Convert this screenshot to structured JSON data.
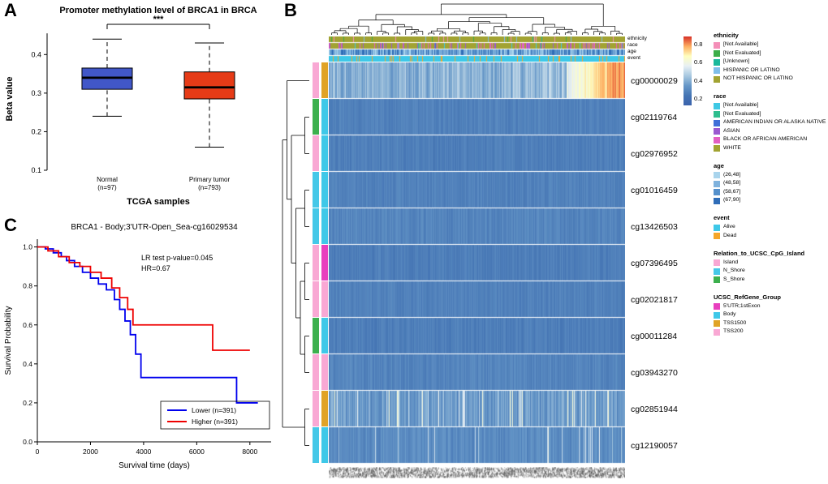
{
  "panels": {
    "a": "A",
    "b": "B",
    "c": "C"
  },
  "chart_data": [
    {
      "id": "panel_a",
      "type": "boxplot",
      "title": "Promoter methylation level of BRCA1 in BRCA",
      "xlabel": "TCGA samples",
      "ylabel": "Beta value",
      "ylim": [
        0.1,
        0.47
      ],
      "yticks": [
        0.1,
        0.2,
        0.3,
        0.4
      ],
      "significance": "***",
      "groups": [
        {
          "label": "Normal",
          "sublabel": "(n=97)",
          "color": "#4157c8",
          "whisker_low": 0.24,
          "q1": 0.31,
          "median": 0.34,
          "q3": 0.365,
          "whisker_high": 0.44
        },
        {
          "label": "Primary tumor",
          "sublabel": "(n=793)",
          "color": "#e63b17",
          "whisker_low": 0.16,
          "q1": 0.285,
          "median": 0.315,
          "q3": 0.355,
          "whisker_high": 0.43
        }
      ]
    },
    {
      "id": "panel_b",
      "type": "heatmap",
      "value_scale": {
        "min": 0.12,
        "max": 0.88,
        "legend_ticks": [
          0.8,
          0.6,
          0.4,
          0.2
        ],
        "colors": [
          "#3A62AC",
          "#4575B4",
          "#6697C8",
          "#A8C8E0",
          "#E8F0F5",
          "#FFFFBF",
          "#FDAE61",
          "#D73027"
        ]
      },
      "rows": [
        {
          "id": "cg00000029",
          "relation": "Island",
          "gene_group": "TSS1500",
          "base": 0.4,
          "noise": 0.08,
          "hot_right": true,
          "streak": 0.05
        },
        {
          "id": "cg02119764",
          "relation": "S_Shore",
          "gene_group": "Body",
          "base": 0.27,
          "noise": 0.03
        },
        {
          "id": "cg02976952",
          "relation": "Island",
          "gene_group": "Body",
          "base": 0.26,
          "noise": 0.03
        },
        {
          "id": "cg01016459",
          "relation": "N_Shore",
          "gene_group": "Body",
          "base": 0.27,
          "noise": 0.03
        },
        {
          "id": "cg13426503",
          "relation": "N_Shore",
          "gene_group": "Body",
          "base": 0.28,
          "noise": 0.035
        },
        {
          "id": "cg07396495",
          "relation": "Island",
          "gene_group": "5'UTR;1stExon",
          "base": 0.26,
          "noise": 0.03
        },
        {
          "id": "cg02021817",
          "relation": "Island",
          "gene_group": "TSS200",
          "base": 0.27,
          "noise": 0.03
        },
        {
          "id": "cg00011284",
          "relation": "S_Shore",
          "gene_group": "Body",
          "base": 0.26,
          "noise": 0.03
        },
        {
          "id": "cg03943270",
          "relation": "Island",
          "gene_group": "TSS200",
          "base": 0.28,
          "noise": 0.035
        },
        {
          "id": "cg02851944",
          "relation": "Island",
          "gene_group": "TSS1500",
          "base": 0.34,
          "noise": 0.07,
          "streak": 0.1
        },
        {
          "id": "cg12190057",
          "relation": "N_Shore",
          "gene_group": "Body",
          "base": 0.3,
          "noise": 0.045,
          "streak": 0.04
        }
      ],
      "column_annotations": [
        {
          "name": "ethnicity",
          "items": [
            {
              "label": "[Not Available]",
              "color": "#F48FB8",
              "weight": 0.02
            },
            {
              "label": "[Not Evaluated]",
              "color": "#3DAE49",
              "weight": 0.02
            },
            {
              "label": "[Unknown]",
              "color": "#19B89B",
              "weight": 0.01
            },
            {
              "label": "HISPANIC OR LATINO",
              "color": "#7FBEE9",
              "weight": 0.04
            },
            {
              "label": "NOT HISPANIC OR LATINO",
              "color": "#A2A332",
              "weight": 0.91
            }
          ]
        },
        {
          "name": "race",
          "items": [
            {
              "label": "[Not Available]",
              "color": "#3FC8E4",
              "weight": 0.03
            },
            {
              "label": "[Not Evaluated]",
              "color": "#2EBE8E",
              "weight": 0.01
            },
            {
              "label": "AMERICAN INDIAN OR ALASKA NATIVE",
              "color": "#3F6FD8",
              "weight": 0.005
            },
            {
              "label": "ASIAN",
              "color": "#9B59D0",
              "weight": 0.06
            },
            {
              "label": "BLACK OR AFRICAN AMERICAN",
              "color": "#E35FC3",
              "weight": 0.15
            },
            {
              "label": "WHITE",
              "color": "#A2A332",
              "weight": 0.745
            }
          ]
        },
        {
          "name": "age",
          "items": [
            {
              "label": "(26,48]",
              "color": "#A9D4EC",
              "weight": 0.22
            },
            {
              "label": "(48,58]",
              "color": "#7FB2DD",
              "weight": 0.28
            },
            {
              "label": "(58,67]",
              "color": "#5590CB",
              "weight": 0.27
            },
            {
              "label": "(67,90]",
              "color": "#2F6DB8",
              "weight": 0.23
            }
          ]
        },
        {
          "name": "event",
          "items": [
            {
              "label": "Alive",
              "color": "#3EC8E8",
              "weight": 0.86
            },
            {
              "label": "Dead",
              "color": "#F5A62A",
              "weight": 0.14
            }
          ]
        }
      ],
      "row_annotation_legends": [
        {
          "name": "Relation_to_UCSC_CpG_Island",
          "items": [
            {
              "label": "Island",
              "color": "#F9A8D4"
            },
            {
              "label": "N_Shore",
              "color": "#45C8E8"
            },
            {
              "label": "S_Shore",
              "color": "#3CB04E"
            }
          ]
        },
        {
          "name": "UCSC_RefGene_Group",
          "items": [
            {
              "label": "5'UTR;1stExon",
              "color": "#E83FBE"
            },
            {
              "label": "Body",
              "color": "#3FC8E8"
            },
            {
              "label": "TSS1500",
              "color": "#E0A326"
            },
            {
              "label": "TSS200",
              "color": "#F9A8D4"
            }
          ]
        }
      ]
    },
    {
      "id": "panel_c",
      "type": "line",
      "title": "BRCA1 - Body;3'UTR-Open_Sea-cg16029534",
      "annotation": [
        "LR test p-value=0.045",
        "HR=0.67"
      ],
      "xlabel": "Survival time (days)",
      "ylabel": "Survival Probability",
      "xlim": [
        0,
        8800
      ],
      "ylim": [
        0,
        1.04
      ],
      "xticks": [
        0,
        2000,
        4000,
        6000,
        8000
      ],
      "yticks": [
        0,
        0.2,
        0.4,
        0.6,
        0.8,
        1.0
      ],
      "legend_position": "bottom-right",
      "series": [
        {
          "name": "Lower (n=391)",
          "color": "#0000EE",
          "step": true,
          "points": [
            [
              0,
              1.0
            ],
            [
              300,
              0.99
            ],
            [
              600,
              0.97
            ],
            [
              900,
              0.95
            ],
            [
              1100,
              0.93
            ],
            [
              1400,
              0.9
            ],
            [
              1700,
              0.87
            ],
            [
              2000,
              0.84
            ],
            [
              2300,
              0.81
            ],
            [
              2600,
              0.78
            ],
            [
              2900,
              0.73
            ],
            [
              3100,
              0.68
            ],
            [
              3300,
              0.62
            ],
            [
              3500,
              0.55
            ],
            [
              3700,
              0.45
            ],
            [
              3900,
              0.33
            ],
            [
              7400,
              0.33
            ],
            [
              7500,
              0.2
            ],
            [
              8300,
              0.2
            ]
          ]
        },
        {
          "name": "Higher (n=391)",
          "color": "#EE0000",
          "step": true,
          "points": [
            [
              0,
              1.0
            ],
            [
              400,
              0.98
            ],
            [
              800,
              0.95
            ],
            [
              1200,
              0.92
            ],
            [
              1600,
              0.9
            ],
            [
              2000,
              0.87
            ],
            [
              2400,
              0.84
            ],
            [
              2800,
              0.79
            ],
            [
              3100,
              0.74
            ],
            [
              3400,
              0.68
            ],
            [
              3600,
              0.6
            ],
            [
              6500,
              0.6
            ],
            [
              6600,
              0.47
            ],
            [
              8000,
              0.47
            ]
          ]
        }
      ]
    }
  ]
}
